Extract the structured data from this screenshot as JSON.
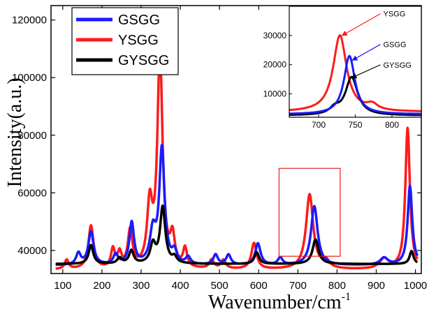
{
  "chart_data": [
    {
      "type": "line",
      "title": "",
      "xlabel": "Wavenumber/cm",
      "xlabel_superscript": "-1",
      "ylabel": "Intensity(a.u.)",
      "xlim": [
        70,
        1015
      ],
      "ylim": [
        32000,
        125000
      ],
      "xticks": [
        100,
        200,
        300,
        400,
        500,
        600,
        700,
        800,
        900,
        1000
      ],
      "xtick_labels": [
        "100",
        "200",
        "300",
        "400",
        "500",
        "600",
        "700",
        "800",
        "900",
        "1000"
      ],
      "yticks": [
        40000,
        60000,
        80000,
        100000,
        120000
      ],
      "ytick_labels": [
        "40000",
        "60000",
        "80000",
        "100000",
        "120000"
      ],
      "legend": {
        "placement": "top-left",
        "entries": [
          "GSGG",
          "YSGG",
          "GYSGG"
        ]
      },
      "grid": false,
      "highlight_box": {
        "x": [
          652,
          808
        ],
        "y": [
          38000,
          68500
        ],
        "color": "#e02020"
      },
      "series": [
        {
          "name": "GSGG",
          "color": "#1a1aff",
          "baseline": 34800,
          "peaks": [
            {
              "x": 140,
              "height": 4000,
              "width": 7
            },
            {
              "x": 172,
              "height": 11500,
              "width": 8
            },
            {
              "x": 235,
              "height": 3500,
              "width": 7
            },
            {
              "x": 276,
              "height": 14500,
              "width": 7
            },
            {
              "x": 330,
              "height": 11000,
              "width": 9
            },
            {
              "x": 353,
              "height": 40000,
              "width": 8
            },
            {
              "x": 385,
              "height": 4000,
              "width": 7
            },
            {
              "x": 420,
              "height": 2500,
              "width": 7
            },
            {
              "x": 490,
              "height": 3500,
              "width": 7
            },
            {
              "x": 523,
              "height": 3500,
              "width": 7
            },
            {
              "x": 598,
              "height": 7500,
              "width": 8
            },
            {
              "x": 655,
              "height": 2500,
              "width": 7
            },
            {
              "x": 742,
              "height": 20500,
              "width": 10
            },
            {
              "x": 920,
              "height": 2500,
              "width": 12
            },
            {
              "x": 986,
              "height": 27500,
              "width": 7
            }
          ]
        },
        {
          "name": "YSGG",
          "color": "#ff1a1a",
          "baseline": 33300,
          "peaks": [
            {
              "x": 110,
              "height": 3200,
              "width": 6
            },
            {
              "x": 172,
              "height": 15000,
              "width": 8
            },
            {
              "x": 228,
              "height": 6500,
              "width": 6
            },
            {
              "x": 245,
              "height": 5000,
              "width": 6
            },
            {
              "x": 272,
              "height": 13000,
              "width": 7
            },
            {
              "x": 322,
              "height": 21000,
              "width": 8
            },
            {
              "x": 348,
              "height": 74000,
              "width": 8
            },
            {
              "x": 380,
              "height": 10000,
              "width": 7
            },
            {
              "x": 412,
              "height": 6500,
              "width": 6
            },
            {
              "x": 480,
              "height": 3000,
              "width": 7
            },
            {
              "x": 510,
              "height": 3000,
              "width": 7
            },
            {
              "x": 588,
              "height": 9000,
              "width": 8
            },
            {
              "x": 730,
              "height": 26000,
              "width": 11
            },
            {
              "x": 772,
              "height": 2500,
              "width": 10
            },
            {
              "x": 920,
              "height": 3500,
              "width": 14
            },
            {
              "x": 980,
              "height": 49000,
              "width": 7
            }
          ]
        },
        {
          "name": "GYSGG",
          "color": "#000000",
          "baseline": 35300,
          "peaks": [
            {
              "x": 172,
              "height": 6500,
              "width": 7
            },
            {
              "x": 245,
              "height": 2000,
              "width": 7
            },
            {
              "x": 275,
              "height": 4500,
              "width": 7
            },
            {
              "x": 330,
              "height": 6500,
              "width": 8
            },
            {
              "x": 355,
              "height": 19500,
              "width": 8
            },
            {
              "x": 385,
              "height": 2000,
              "width": 7
            },
            {
              "x": 595,
              "height": 4000,
              "width": 7
            },
            {
              "x": 745,
              "height": 8500,
              "width": 9
            },
            {
              "x": 990,
              "height": 4500,
              "width": 6
            }
          ]
        }
      ]
    },
    {
      "type": "line",
      "title": "",
      "xlabel": "",
      "ylabel": "",
      "xlim": [
        660,
        840
      ],
      "ylim": [
        2000,
        40000
      ],
      "xticks": [
        700,
        750,
        800
      ],
      "xtick_labels": [
        "700",
        "750",
        "800"
      ],
      "yticks": [
        10000,
        20000,
        30000
      ],
      "ytick_labels": [
        "10000",
        "20000",
        "30000"
      ],
      "grid": false,
      "annotations": [
        {
          "text": "YSGG",
          "color": "#ff1a1a",
          "text_x": 790,
          "text_y": 36500,
          "arrow_to_x": 732,
          "arrow_to_y": 30000
        },
        {
          "text": "GSGG",
          "color": "#1a1aff",
          "text_x": 790,
          "text_y": 26000,
          "arrow_to_x": 746,
          "arrow_to_y": 21500
        },
        {
          "text": "GYSGG",
          "color": "#000000",
          "text_x": 790,
          "text_y": 19000,
          "arrow_to_x": 745,
          "arrow_to_y": 15500
        }
      ],
      "series": [
        {
          "name": "YSGG",
          "color": "#ff1a1a",
          "baseline": 3800,
          "peaks": [
            {
              "x": 729,
              "height": 26200,
              "width": 11
            },
            {
              "x": 773,
              "height": 2000,
              "width": 9
            }
          ]
        },
        {
          "name": "GSGG",
          "color": "#1a1aff",
          "baseline": 3000,
          "peaks": [
            {
              "x": 742,
              "height": 20000,
              "width": 9
            }
          ]
        },
        {
          "name": "GYSGG",
          "color": "#000000",
          "baseline": 2600,
          "peaks": [
            {
              "x": 745,
              "height": 13000,
              "width": 10
            },
            {
              "x": 722,
              "height": 2000,
              "width": 8
            }
          ]
        }
      ]
    }
  ]
}
